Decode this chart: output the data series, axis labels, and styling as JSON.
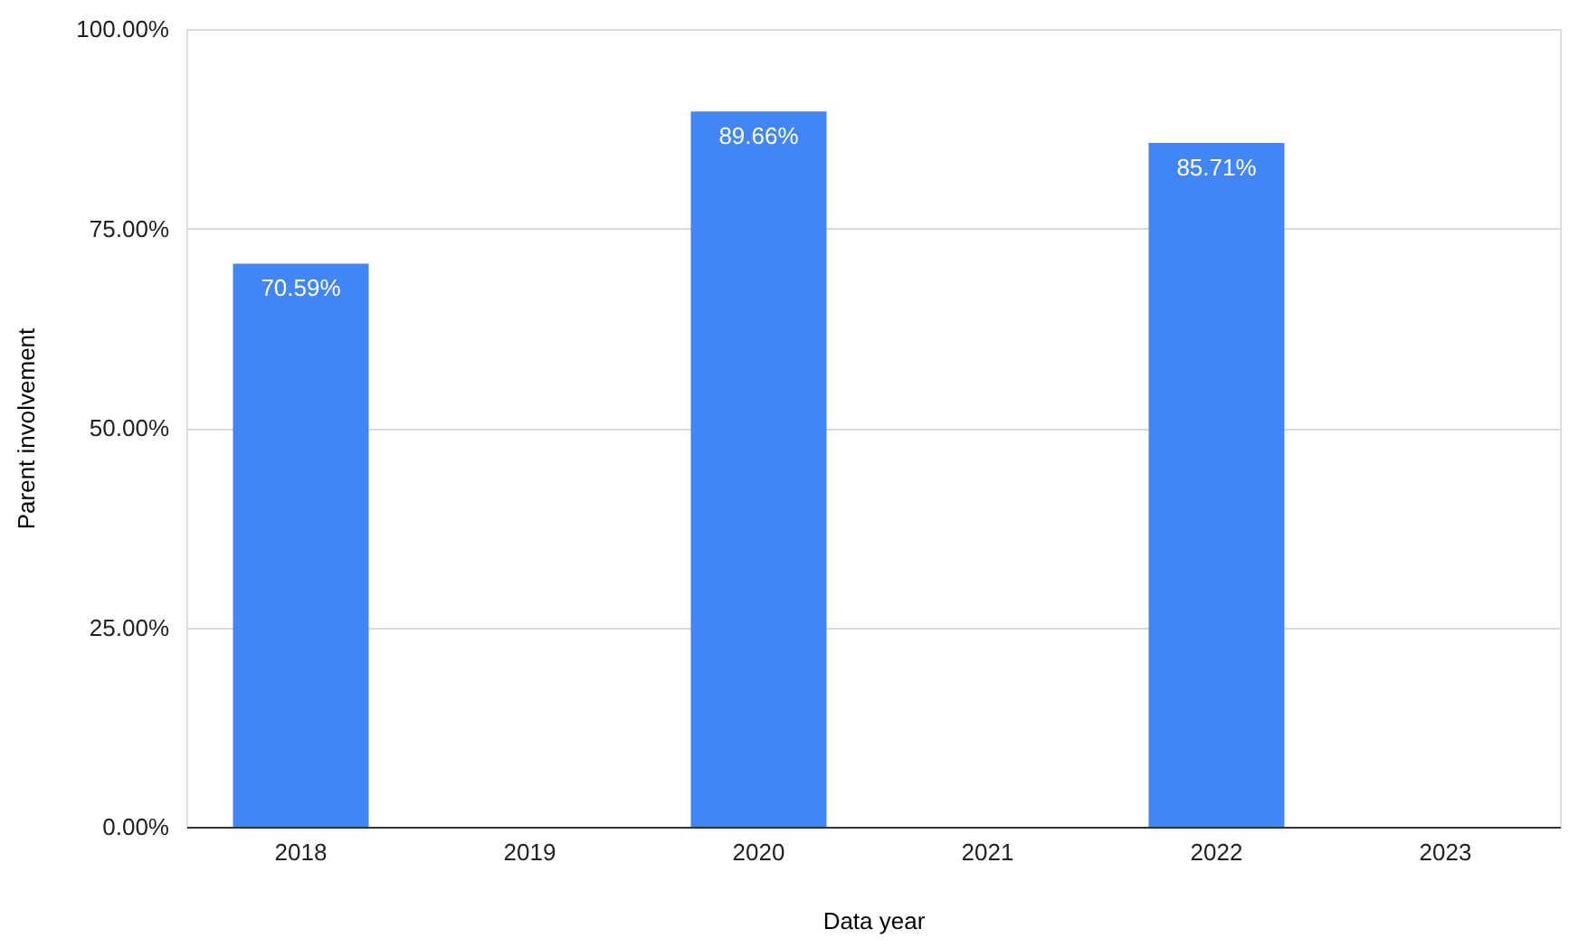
{
  "chart_data": {
    "type": "bar",
    "categories": [
      "2018",
      "2019",
      "2020",
      "2021",
      "2022",
      "2023"
    ],
    "values": [
      70.59,
      null,
      89.66,
      null,
      85.71,
      null
    ],
    "value_labels": [
      "70.59%",
      null,
      "89.66%",
      null,
      "85.71%",
      null
    ],
    "color": "#4285f4",
    "xlabel": "Data year",
    "ylabel": "Parent involvement",
    "ylim": [
      0,
      100
    ],
    "yticks": [
      {
        "value": 0,
        "label": "0.00%"
      },
      {
        "value": 25,
        "label": "25.00%"
      },
      {
        "value": 50,
        "label": "50.00%"
      },
      {
        "value": 75,
        "label": "75.00%"
      },
      {
        "value": 100,
        "label": "100.00%"
      }
    ],
    "grid": "y"
  }
}
